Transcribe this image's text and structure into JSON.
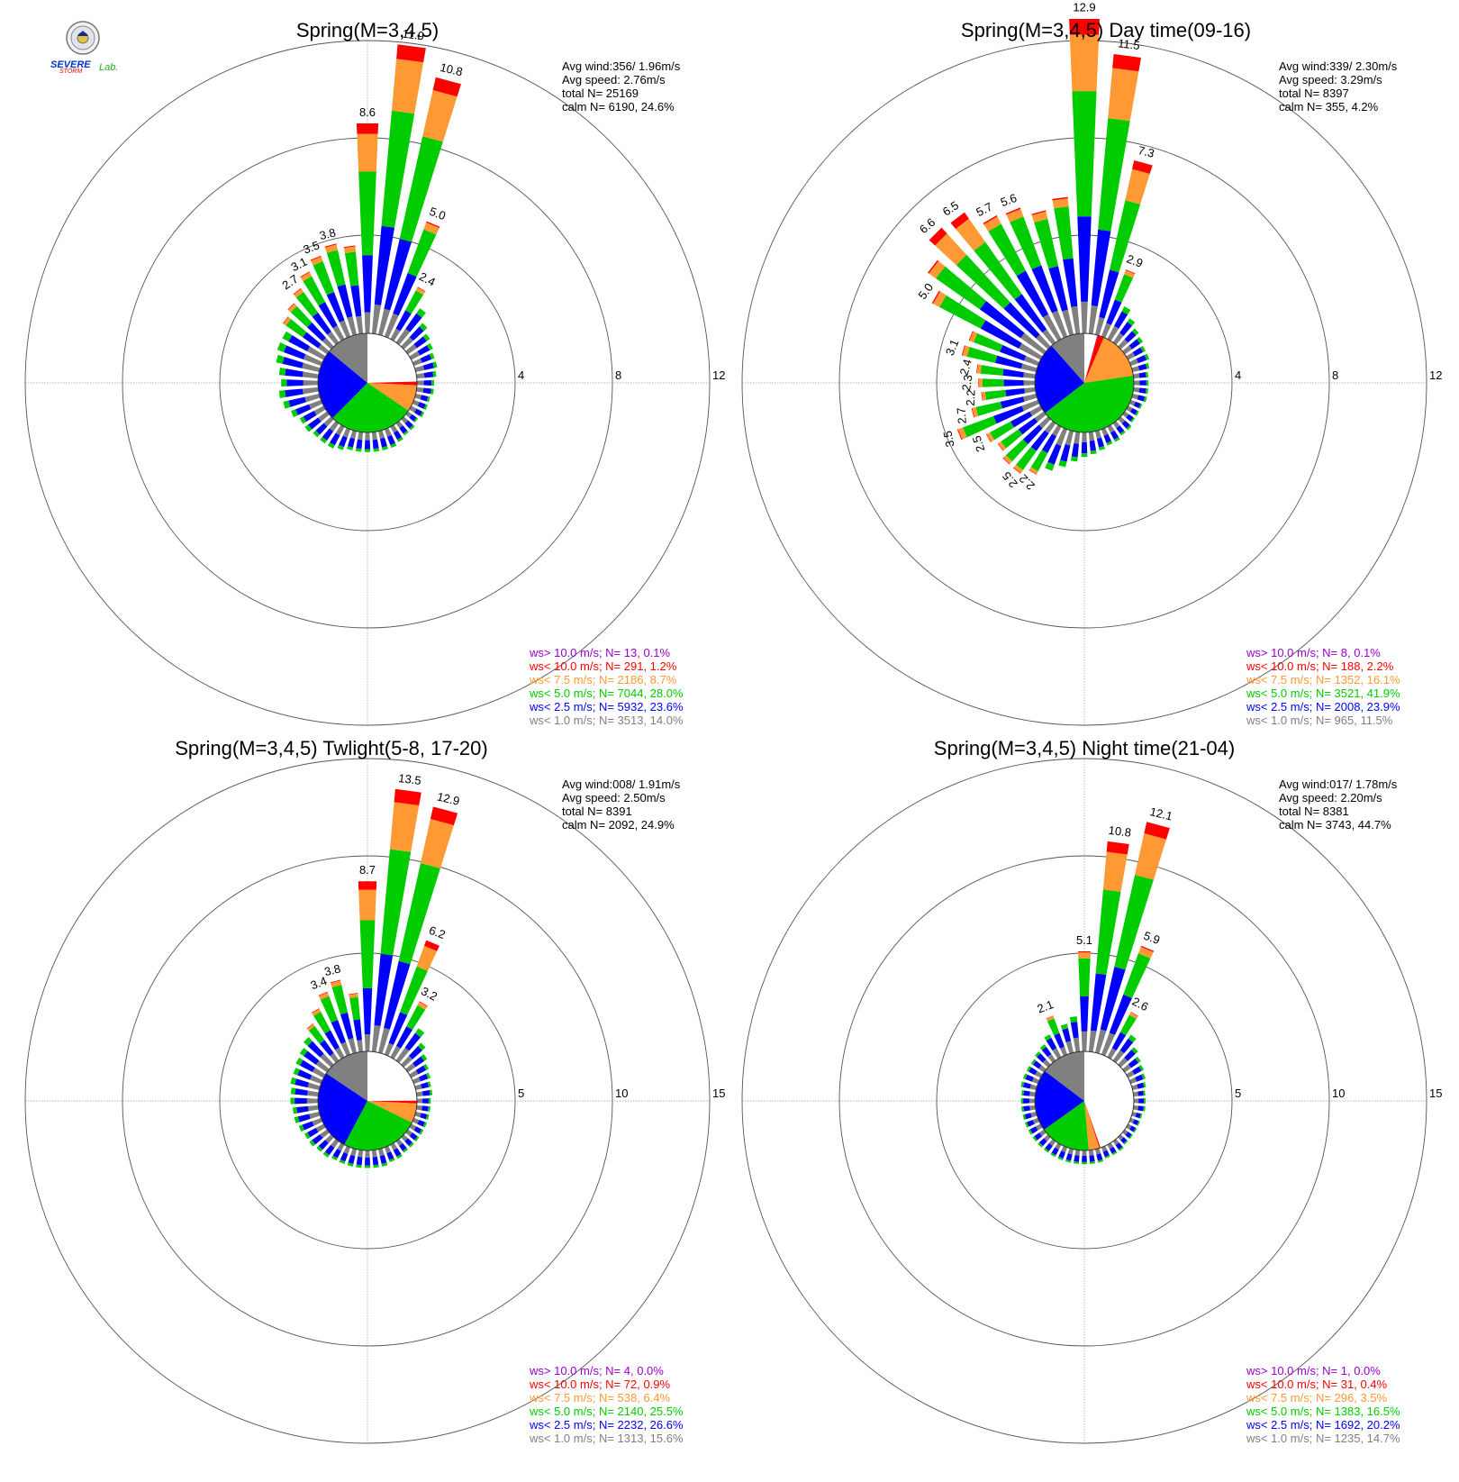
{
  "logo": {
    "text_a": "SEVERE",
    "text_b": "STORM",
    "text_c": "Lab.",
    "colors": {
      "blue": "#0033cc",
      "red": "#e60000",
      "green": "#22aa22"
    }
  },
  "colors": {
    "ws_gt_10": "#9900cc",
    "ws_lt_10": "#ff0000",
    "ws_lt_7_5": "#ff9933",
    "ws_lt_5": "#00cc00",
    "ws_lt_2_5": "#0000ff",
    "ws_lt_1": "#808080",
    "grid": "#555555",
    "gridline": "#999999"
  },
  "chart_data": [
    {
      "type": "windrose",
      "title": "Spring(M=3,4,5)",
      "ring_labels": [
        "4",
        "8",
        "12"
      ],
      "ring_values": [
        4,
        8,
        12
      ],
      "stats": [
        "Avg wind:356/ 1.96m/s",
        "Avg speed: 2.76m/s",
        "total N=       25169",
        "calm N=   6190,  24.6%"
      ],
      "legend": [
        "ws> 10.0 m/s; N=     13,  0.1%",
        "ws< 10.0 m/s; N=   291,  1.2%",
        "ws<  7.5 m/s; N=  2186,  8.7%",
        "ws<  5.0 m/s; N=  7044, 28.0%",
        "ws<  2.5 m/s; N=  5932, 23.6%",
        "ws<  1.0 m/s; N=  3513, 14.0%"
      ],
      "sector_values": [
        8.6,
        11.9,
        10.8,
        5.0,
        2.4,
        1.7,
        1.3,
        1.1,
        1.0,
        0.9,
        0.9,
        0.8,
        0.7,
        0.7,
        0.6,
        0.6,
        0.6,
        0.5,
        0.6,
        0.6,
        0.7,
        0.8,
        0.8,
        0.8,
        0.8,
        0.8,
        0.8,
        0.9,
        1.0,
        1.0,
        1.0,
        1.1,
        1.1,
        1.3,
        1.5,
        1.6,
        1.5,
        1.6,
        1.8,
        1.9,
        1.9,
        2.2,
        2.4,
        2.7,
        3.1,
        3.5,
        3.8,
        3.6
      ],
      "labels": [
        {
          "text": "8.6",
          "sector": 0
        },
        {
          "text": "11.9",
          "sector": 1
        },
        {
          "text": "10.8",
          "sector": 2
        },
        {
          "text": "5.0",
          "sector": 3
        },
        {
          "text": "2.4",
          "sector": 4
        },
        {
          "text": "2.7",
          "sector": 43
        },
        {
          "text": "3.1",
          "sector": 44
        },
        {
          "text": "3.5",
          "sector": 45
        },
        {
          "text": "3.8",
          "sector": 46
        }
      ],
      "pie": [
        0.246,
        0.0,
        0.012,
        0.087,
        0.28,
        0.236,
        0.14
      ]
    },
    {
      "type": "windrose",
      "title": "Spring(M=3,4,5) Day time(09-16)",
      "ring_labels": [
        "4",
        "8",
        "12"
      ],
      "ring_values": [
        4,
        8,
        12
      ],
      "stats": [
        "Avg wind:339/ 2.30m/s",
        "Avg speed: 3.29m/s",
        "total N=         8397",
        "calm N=    355,   4.2%"
      ],
      "legend": [
        "ws> 10.0 m/s; N=      8,  0.1%",
        "ws< 10.0 m/s; N=   188,  2.2%",
        "ws<  7.5 m/s; N=  1352, 16.1%",
        "ws<  5.0 m/s; N=  3521, 41.9%",
        "ws<  2.5 m/s; N=  2008, 23.9%",
        "ws<  1.0 m/s; N=    965, 11.5%"
      ],
      "sector_values": [
        12.9,
        11.5,
        7.3,
        2.9,
        1.5,
        1.2,
        1.0,
        0.9,
        0.8,
        0.8,
        0.7,
        0.6,
        0.6,
        0.6,
        0.6,
        0.5,
        0.5,
        0.5,
        0.6,
        0.6,
        0.7,
        0.7,
        0.8,
        0.9,
        1.0,
        1.2,
        1.5,
        1.8,
        2.2,
        2.5,
        2.5,
        2.3,
        2.5,
        3.5,
        2.7,
        2.2,
        2.3,
        2.4,
        3.1,
        3.0,
        5.0,
        5.8,
        6.6,
        6.5,
        5.7,
        5.6,
        5.2,
        5.6
      ],
      "labels": [
        {
          "text": "12.9",
          "sector": 0
        },
        {
          "text": "11.5",
          "sector": 1
        },
        {
          "text": "7.3",
          "sector": 2
        },
        {
          "text": "2.9",
          "sector": 3
        },
        {
          "text": "2.2",
          "sector": 28
        },
        {
          "text": "2.5",
          "sector": 29
        },
        {
          "text": "2.5",
          "sector": 32
        },
        {
          "text": "3.5",
          "sector": 33
        },
        {
          "text": "2.7",
          "sector": 34
        },
        {
          "text": "2.2",
          "sector": 35
        },
        {
          "text": "2.3",
          "sector": 36
        },
        {
          "text": "2.4",
          "sector": 37
        },
        {
          "text": "3.1",
          "sector": 38
        },
        {
          "text": "5.0",
          "sector": 40
        },
        {
          "text": "6.6",
          "sector": 42
        },
        {
          "text": "6.5",
          "sector": 43
        },
        {
          "text": "5.7",
          "sector": 44
        },
        {
          "text": "5.6",
          "sector": 45
        }
      ],
      "pie": [
        0.042,
        0.001,
        0.022,
        0.161,
        0.419,
        0.239,
        0.115
      ]
    },
    {
      "type": "windrose",
      "title": "Spring(M=3,4,5) Twlight(5-8, 17-20)",
      "ring_labels": [
        "5",
        "10",
        "15"
      ],
      "ring_values": [
        5,
        10,
        15
      ],
      "stats": [
        "Avg wind:008/ 1.91m/s",
        "Avg speed: 2.50m/s",
        "total N=         8391",
        "calm N=   2092,  24.9%"
      ],
      "legend": [
        "ws> 10.0 m/s; N=      4,  0.0%",
        "ws< 10.0 m/s; N=     72,  0.9%",
        "ws<  7.5 m/s; N=   538,  6.4%",
        "ws<  5.0 m/s; N=  2140, 25.5%",
        "ws<  2.5 m/s; N=  2232, 26.6%",
        "ws<  1.0 m/s; N=  1313, 15.6%"
      ],
      "sector_values": [
        8.7,
        13.5,
        12.9,
        6.2,
        3.2,
        2.0,
        1.5,
        1.2,
        1.0,
        0.9,
        0.8,
        0.8,
        0.7,
        0.7,
        0.7,
        0.7,
        0.7,
        0.7,
        0.7,
        0.7,
        0.8,
        0.8,
        0.9,
        0.9,
        0.9,
        0.9,
        0.9,
        0.9,
        0.9,
        1.0,
        1.0,
        1.1,
        1.1,
        1.2,
        1.3,
        1.3,
        1.4,
        1.4,
        1.5,
        1.5,
        1.6,
        1.7,
        1.9,
        2.3,
        2.8,
        3.4,
        3.8,
        3.0
      ],
      "labels": [
        {
          "text": "8.7",
          "sector": 0
        },
        {
          "text": "13.5",
          "sector": 1
        },
        {
          "text": "12.9",
          "sector": 2
        },
        {
          "text": "6.2",
          "sector": 3
        },
        {
          "text": "3.2",
          "sector": 4
        },
        {
          "text": "3.4",
          "sector": 45
        },
        {
          "text": "3.8",
          "sector": 46
        }
      ],
      "pie": [
        0.249,
        0.0,
        0.009,
        0.064,
        0.255,
        0.266,
        0.156
      ]
    },
    {
      "type": "windrose",
      "title": "Spring(M=3,4,5) Night time(21-04)",
      "ring_labels": [
        "5",
        "10",
        "15"
      ],
      "ring_values": [
        5,
        10,
        15
      ],
      "stats": [
        "Avg wind:017/ 1.78m/s",
        "Avg speed: 2.20m/s",
        "total N=         8381",
        "calm N=   3743,  44.7%"
      ],
      "legend": [
        "ws> 10.0 m/s; N=      1,  0.0%",
        "ws< 10.0 m/s; N=     31,  0.4%",
        "ws<  7.5 m/s; N=   296,  3.5%",
        "ws<  5.0 m/s; N=  1383, 16.5%",
        "ws<  2.5 m/s; N=  1692, 20.2%",
        "ws<  1.0 m/s; N=  1235, 14.7%"
      ],
      "sector_values": [
        5.1,
        10.8,
        12.1,
        5.9,
        2.6,
        1.6,
        1.2,
        1.0,
        0.9,
        0.8,
        0.7,
        0.6,
        0.6,
        0.6,
        0.5,
        0.5,
        0.5,
        0.5,
        0.5,
        0.6,
        0.6,
        0.6,
        0.7,
        0.7,
        0.7,
        0.7,
        0.7,
        0.7,
        0.7,
        0.7,
        0.7,
        0.7,
        0.7,
        0.7,
        0.7,
        0.7,
        0.7,
        0.7,
        0.8,
        0.8,
        0.8,
        0.8,
        0.9,
        1.0,
        1.3,
        2.1,
        1.5,
        1.8
      ],
      "labels": [
        {
          "text": "5.1",
          "sector": 0
        },
        {
          "text": "10.8",
          "sector": 1
        },
        {
          "text": "12.1",
          "sector": 2
        },
        {
          "text": "5.9",
          "sector": 3
        },
        {
          "text": "2.6",
          "sector": 4
        },
        {
          "text": "2.1",
          "sector": 45
        }
      ],
      "pie": [
        0.447,
        0.0,
        0.004,
        0.035,
        0.165,
        0.202,
        0.147
      ]
    }
  ]
}
